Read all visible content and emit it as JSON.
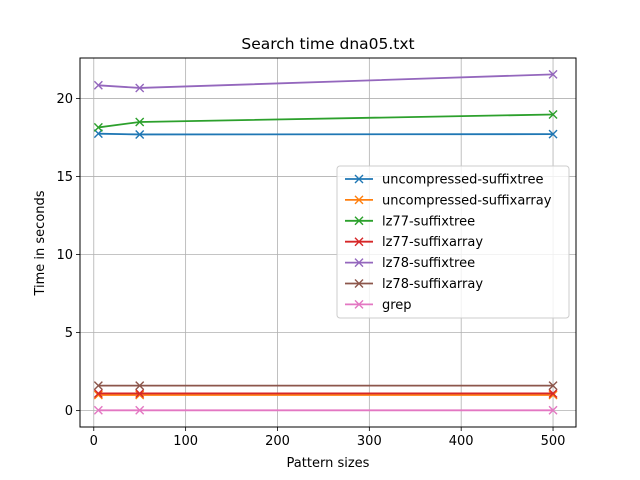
{
  "chart_data": {
    "type": "line",
    "title": "Search time dna05.txt",
    "xlabel": "Pattern sizes",
    "ylabel": "Time in seconds",
    "x": [
      5,
      50,
      500
    ],
    "xlim": [
      -15,
      525
    ],
    "ylim": [
      -1.05,
      22.6
    ],
    "xticks": [
      0,
      100,
      200,
      300,
      400,
      500
    ],
    "yticks": [
      0,
      5,
      10,
      15,
      20
    ],
    "grid": true,
    "legend_position": "center-right",
    "marker": "x",
    "series": [
      {
        "name": "uncompressed-suffixtree",
        "color": "#1f77b4",
        "values": [
          17.75,
          17.7,
          17.72
        ]
      },
      {
        "name": "uncompressed-suffixarray",
        "color": "#ff7f0e",
        "values": [
          1.0,
          1.0,
          1.0
        ]
      },
      {
        "name": "lz77-suffixtree",
        "color": "#2ca02c",
        "values": [
          18.15,
          18.5,
          18.98
        ]
      },
      {
        "name": "lz77-suffixarray",
        "color": "#d62728",
        "values": [
          1.1,
          1.1,
          1.1
        ]
      },
      {
        "name": "lz78-suffixtree",
        "color": "#9467bd",
        "values": [
          20.85,
          20.68,
          21.55
        ]
      },
      {
        "name": "lz78-suffixarray",
        "color": "#8c564b",
        "values": [
          1.6,
          1.6,
          1.6
        ]
      },
      {
        "name": "grep",
        "color": "#e377c2",
        "values": [
          0.02,
          0.02,
          0.02
        ]
      }
    ]
  }
}
